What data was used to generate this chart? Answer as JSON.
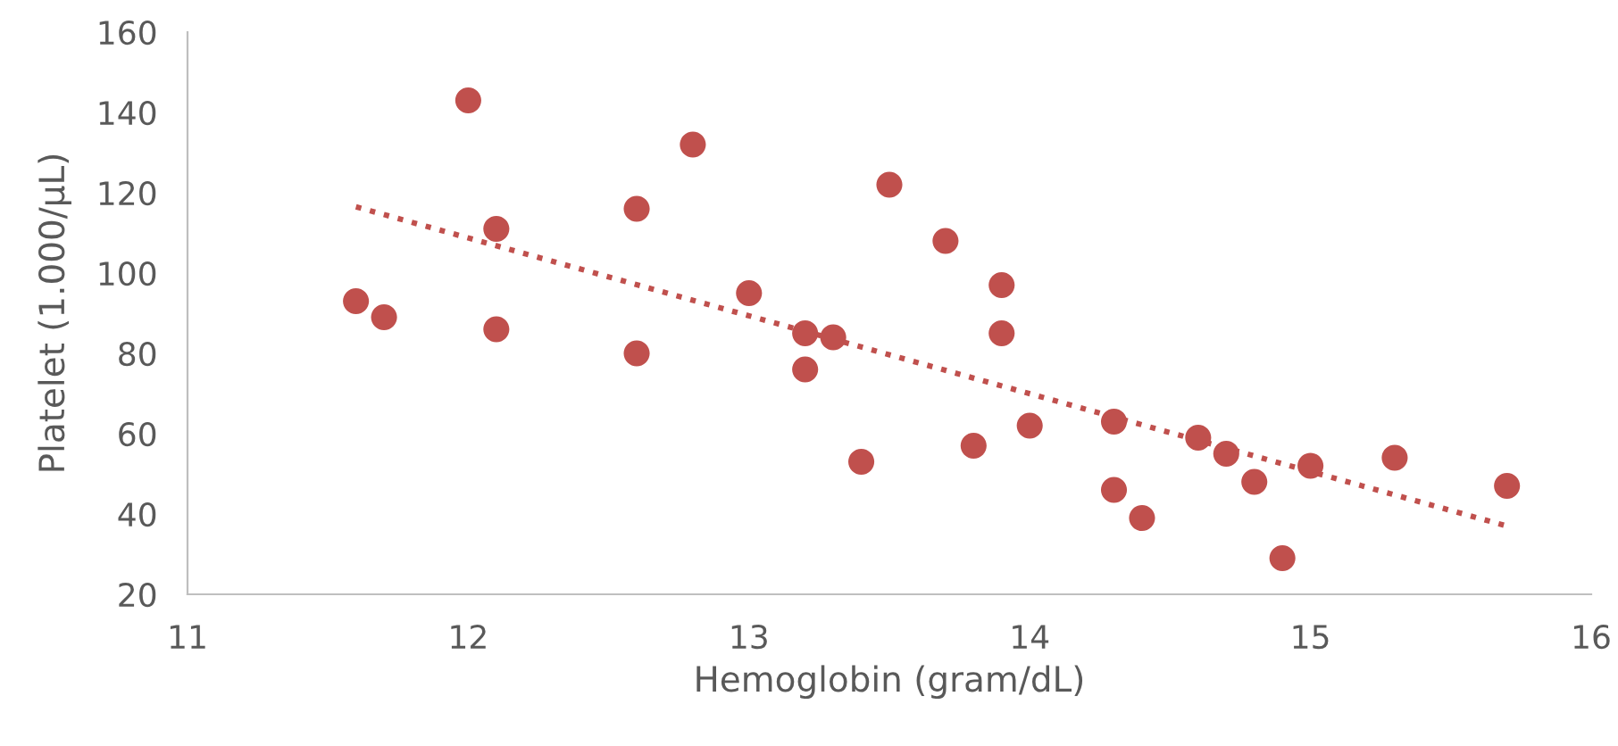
{
  "chart_data": {
    "type": "scatter",
    "xlabel": "Hemoglobin (gram/dL)",
    "ylabel": "Platelet (1.000/µL)",
    "xlim": [
      11,
      16
    ],
    "xticks": [
      11,
      12,
      13,
      14,
      15,
      16
    ],
    "ylim": [
      20,
      160
    ],
    "yticks": [
      20,
      40,
      60,
      80,
      100,
      120,
      140,
      160
    ],
    "grid": false,
    "legend": false,
    "series": [
      {
        "color": "#c0504d",
        "marker": "circle",
        "x": [
          11.6,
          11.7,
          12.0,
          12.1,
          12.1,
          12.6,
          12.6,
          12.8,
          13.0,
          13.2,
          13.2,
          13.3,
          13.4,
          13.5,
          13.7,
          13.8,
          13.9,
          13.9,
          14.0,
          14.3,
          14.3,
          14.4,
          14.6,
          14.7,
          14.8,
          14.9,
          15.0,
          15.3,
          15.7
        ],
        "values": [
          93,
          89,
          143,
          111,
          86,
          116,
          80,
          132,
          95,
          85,
          76,
          84,
          53,
          122,
          108,
          57,
          97,
          85,
          62,
          63,
          46,
          39,
          59,
          55,
          48,
          29,
          52,
          54,
          47
        ]
      },
      {
        "type": "line",
        "color": "#c0504d",
        "line_style": "dotted",
        "x": [
          11.6,
          15.7
        ],
        "values": [
          116.5,
          37
        ]
      }
    ]
  }
}
